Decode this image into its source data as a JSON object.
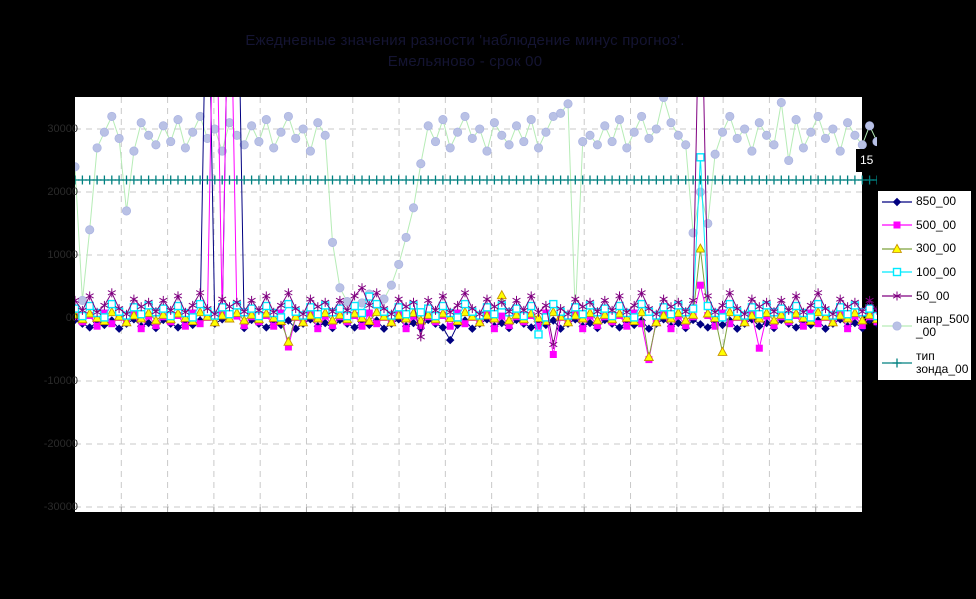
{
  "title": {
    "line1": "Ежедневные значения разности 'наблюдение минус прогноз'.",
    "line2": "Емельяново - срок 00"
  },
  "right_axis_label": "15",
  "colors": {
    "background": "#000000",
    "plot_background": "#ffffff",
    "gridline": "#c9c9c9",
    "title_text": "#141432",
    "y_tick_text": "#2a2a2a",
    "right_axis_text": "#ffffff",
    "legend_background": "#ffffff",
    "legend_border": "#000000",
    "legend_text": "#000000",
    "series_850": "#000080",
    "series_500": "#ff00ff",
    "series_300_line": "#7ea23c",
    "series_300_marker": "#ffff00",
    "series_100": "#00eaff",
    "series_50": "#800080",
    "series_napr_line": "#b6ecb6",
    "series_napr_marker": "#b9c1e5",
    "series_tip": "#008080"
  },
  "legend": {
    "entries": [
      {
        "label": "850_00",
        "label_lines": "850_00"
      },
      {
        "label": "500_00",
        "label_lines": "500_00"
      },
      {
        "label": "300_00",
        "label_lines": "300_00"
      },
      {
        "label": "100_00",
        "label_lines": "100_00"
      },
      {
        "label": "50_00",
        "label_lines": "50_00"
      },
      {
        "label": "напр_500_00",
        "label_lines": "напр_500\n_00"
      },
      {
        "label": "тип зонда_00",
        "label_lines": "тип\nзонда_00"
      }
    ]
  },
  "chart_data": {
    "type": "line",
    "title": "Ежедневные значения разности 'наблюдение минус прогноз'. Емельяново - срок 00",
    "xlabel": "",
    "ylabel": "",
    "x_count": 110,
    "x_labels_visible": false,
    "ylim": [
      -30800,
      35100
    ],
    "y_ticks": [
      {
        "label": "30000",
        "value": 30000
      },
      {
        "label": "20000",
        "value": 20000
      },
      {
        "label": "10000",
        "value": 10000
      },
      {
        "label": "00",
        "value": 0
      },
      {
        "label": "-10000",
        "value": -10000
      },
      {
        "label": "-20000",
        "value": -20000
      },
      {
        "label": "-30000",
        "value": -30000
      }
    ],
    "grid": {
      "horizontal_values": [
        30000,
        20000,
        10000,
        -10000,
        -20000,
        -30000
      ],
      "vertical_divisions": 17,
      "style": "dashed"
    },
    "legend_position": "right",
    "series": [
      {
        "name": "850_00",
        "marker": "diamond",
        "line_color": "#000080",
        "marker_fill": "#000080",
        "marker_edge": "#000080",
        "values": [
          -300,
          -900,
          -1500,
          -700,
          -1100,
          -400,
          -1700,
          -900,
          -200,
          -1300,
          -800,
          -1600,
          -300,
          -900,
          -1500,
          -700,
          -1100,
          -400,
          65000,
          -900,
          -200,
          65000,
          65000,
          -1600,
          -300,
          -900,
          -1500,
          -700,
          -1100,
          -400,
          -1700,
          -900,
          -200,
          -1300,
          -800,
          -1600,
          -300,
          -900,
          -1500,
          -700,
          -1100,
          -400,
          -1700,
          -900,
          -200,
          -1300,
          -800,
          -1600,
          -300,
          -900,
          -1500,
          -3500,
          -1100,
          -400,
          -1700,
          -900,
          -200,
          -1300,
          -800,
          -1600,
          -300,
          -900,
          -1500,
          -700,
          -1100,
          -400,
          -1700,
          -900,
          -200,
          -1300,
          -800,
          -1600,
          -300,
          -900,
          -1500,
          -700,
          -1100,
          -400,
          -1700,
          -900,
          -200,
          -1300,
          -800,
          -1600,
          -300,
          -1000,
          -1500,
          -700,
          -1100,
          -400,
          -1700,
          -900,
          -200,
          -1300,
          -800,
          -1600,
          -300,
          -900,
          -1500,
          -700,
          -1100,
          -400,
          -1700,
          -900,
          -200,
          -1300,
          -800,
          -1600,
          -300,
          -900
        ]
      },
      {
        "name": "500_00",
        "marker": "square",
        "line_color": "#ff00ff",
        "marker_fill": "#ff00ff",
        "marker_edge": "#ff00ff",
        "values": [
          200,
          -600,
          400,
          -1300,
          800,
          -900,
          100,
          -400,
          600,
          -1700,
          300,
          -1200,
          200,
          -600,
          400,
          -1300,
          800,
          -900,
          100,
          65000,
          600,
          65000,
          300,
          -1200,
          200,
          -600,
          400,
          -1300,
          800,
          -4600,
          100,
          -400,
          600,
          -1700,
          300,
          -1200,
          200,
          -600,
          400,
          -1300,
          800,
          -900,
          100,
          -400,
          600,
          -1700,
          300,
          -1200,
          200,
          -600,
          400,
          -1300,
          800,
          -900,
          100,
          -400,
          600,
          -1700,
          300,
          -1200,
          200,
          -600,
          400,
          -1300,
          800,
          -5800,
          100,
          -400,
          600,
          -1700,
          300,
          -1200,
          200,
          -600,
          400,
          -1300,
          800,
          -900,
          -6600,
          -400,
          600,
          -1700,
          300,
          -1200,
          200,
          5200,
          400,
          -1300,
          800,
          -900,
          100,
          -400,
          600,
          -4800,
          300,
          -1200,
          200,
          -600,
          400,
          -1300,
          800,
          -900,
          100,
          -400,
          600,
          -1700,
          300,
          -1200,
          200,
          -600
        ]
      },
      {
        "name": "300_00",
        "marker": "triangle",
        "line_color": "#7ea23c",
        "marker_fill": "#ffff00",
        "marker_edge": "#c79200",
        "values": [
          500,
          -200,
          700,
          0,
          -500,
          900,
          200,
          -700,
          400,
          -100,
          800,
          -400,
          500,
          -200,
          700,
          0,
          -500,
          900,
          200,
          -700,
          400,
          -100,
          800,
          -400,
          500,
          -200,
          700,
          0,
          -500,
          -3800,
          200,
          -700,
          400,
          -100,
          800,
          -400,
          500,
          -200,
          700,
          0,
          -500,
          900,
          200,
          -700,
          400,
          -100,
          800,
          -400,
          500,
          -200,
          700,
          0,
          -500,
          900,
          200,
          -700,
          400,
          -100,
          3600,
          -400,
          500,
          -200,
          700,
          0,
          -500,
          900,
          200,
          -700,
          400,
          -100,
          800,
          -400,
          500,
          -200,
          700,
          0,
          -500,
          900,
          -6200,
          -700,
          400,
          -100,
          800,
          -400,
          500,
          11000,
          700,
          0,
          -5400,
          900,
          200,
          -700,
          400,
          -100,
          800,
          -400,
          500,
          -200,
          700,
          0,
          -500,
          900,
          200,
          -700,
          400,
          -100,
          800,
          -400,
          500,
          -200
        ]
      },
      {
        "name": "100_00",
        "marker": "open-square",
        "line_color": "#00eaff",
        "marker_fill": "#ffffff",
        "marker_edge": "#00eaff",
        "values": [
          1500,
          300,
          1900,
          800,
          100,
          2200,
          1000,
          400,
          1700,
          600,
          2000,
          900,
          1500,
          300,
          1900,
          800,
          100,
          2200,
          1000,
          400,
          1700,
          600,
          2000,
          900,
          1500,
          300,
          1900,
          800,
          100,
          2200,
          1000,
          400,
          1700,
          600,
          2000,
          900,
          1500,
          300,
          1900,
          800,
          3400,
          2200,
          1000,
          400,
          1700,
          600,
          2000,
          900,
          1500,
          300,
          1900,
          800,
          100,
          2200,
          1000,
          400,
          1700,
          600,
          2000,
          900,
          1500,
          300,
          1900,
          -2600,
          100,
          2200,
          1000,
          400,
          1700,
          600,
          2000,
          900,
          1500,
          300,
          1900,
          800,
          100,
          2200,
          1000,
          400,
          1700,
          600,
          2000,
          900,
          1500,
          25500,
          1900,
          800,
          100,
          2200,
          1000,
          400,
          1700,
          600,
          2000,
          900,
          1500,
          300,
          1900,
          800,
          100,
          2200,
          1000,
          400,
          1700,
          600,
          2000,
          900,
          1500,
          300
        ]
      },
      {
        "name": "50_00",
        "marker": "asterisk",
        "line_color": "#800080",
        "marker_fill": "#800080",
        "marker_edge": "#800080",
        "values": [
          2800,
          1200,
          3500,
          900,
          2000,
          4000,
          1500,
          600,
          3000,
          1800,
          2500,
          1000,
          2800,
          1200,
          3500,
          900,
          2000,
          4000,
          1500,
          600,
          3000,
          1800,
          2500,
          1000,
          2800,
          1200,
          3500,
          900,
          2000,
          4000,
          1500,
          600,
          3000,
          1800,
          2500,
          1000,
          2800,
          1200,
          3500,
          4800,
          2000,
          4000,
          1500,
          600,
          3000,
          1800,
          2500,
          -3000,
          2800,
          1200,
          3500,
          900,
          2000,
          4000,
          1500,
          600,
          3000,
          1800,
          2500,
          1000,
          2800,
          1200,
          3500,
          900,
          2000,
          -4200,
          1500,
          600,
          3000,
          1800,
          2500,
          1000,
          2800,
          1200,
          3500,
          900,
          2000,
          4000,
          1500,
          600,
          3000,
          1800,
          2500,
          1000,
          2800,
          62000,
          3500,
          900,
          2000,
          4000,
          1500,
          600,
          3000,
          1800,
          2500,
          1000,
          2800,
          1200,
          3500,
          900,
          2000,
          4000,
          1500,
          600,
          3000,
          1800,
          2500,
          1000,
          2800,
          1200
        ]
      },
      {
        "name": "напр_500_00",
        "marker": "circle",
        "line_color": "#b6ecb6",
        "marker_fill": "#b9c1e5",
        "marker_edge": "#aab3e2",
        "values": [
          24000,
          2800,
          14000,
          27000,
          29500,
          32000,
          28500,
          17000,
          26500,
          31000,
          29000,
          27500,
          30500,
          28000,
          31500,
          27000,
          29500,
          32000,
          28500,
          30000,
          26500,
          31000,
          29000,
          27500,
          30500,
          28000,
          31500,
          27000,
          29500,
          32000,
          28500,
          30000,
          26500,
          31000,
          29000,
          12000,
          4800,
          2600,
          1800,
          2400,
          3800,
          2000,
          3000,
          5200,
          8500,
          12800,
          17500,
          24500,
          30500,
          28000,
          31500,
          27000,
          29500,
          32000,
          28500,
          30000,
          26500,
          31000,
          29000,
          27500,
          30500,
          28000,
          31500,
          27000,
          29500,
          32000,
          32500,
          34000,
          500,
          28000,
          29000,
          27500,
          30500,
          28000,
          31500,
          27000,
          29500,
          32000,
          28500,
          30000,
          35000,
          31000,
          29000,
          27500,
          13500,
          20000,
          15000,
          26000,
          29500,
          32000,
          28500,
          30000,
          26500,
          31000,
          29000,
          27500,
          34200,
          25000,
          31500,
          27000,
          29500,
          32000,
          28500,
          30000,
          26500,
          31000,
          29000,
          27500,
          30500,
          28000
        ]
      },
      {
        "name": "тип зонда_00",
        "marker": "plus",
        "line_color": "#008080",
        "marker_fill": "#008080",
        "marker_edge": "#008080",
        "constant": 21900,
        "values": null
      }
    ]
  }
}
